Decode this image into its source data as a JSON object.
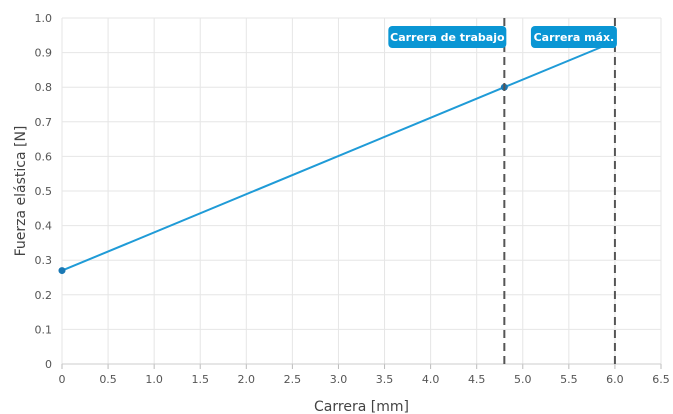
{
  "chart_data": {
    "type": "line",
    "title": "",
    "xlabel": "Carrera [mm]",
    "ylabel": "Fuerza elástica [N]",
    "xlim": [
      0,
      6.5
    ],
    "ylim": [
      0,
      1.0
    ],
    "x_ticks": [
      "0",
      "0.5",
      "1.0",
      "1.5",
      "2.0",
      "2.5",
      "3.0",
      "3.5",
      "4.0",
      "4.5",
      "5.0",
      "5.5",
      "6.0",
      "6.5"
    ],
    "y_ticks": [
      "0",
      "0.1",
      "0.2",
      "0.3",
      "0.4",
      "0.5",
      "0.6",
      "0.7",
      "0.8",
      "0.9",
      "1.0"
    ],
    "grid": true,
    "series": [
      {
        "x": [
          0,
          4.8,
          6.0
        ],
        "y": [
          0.27,
          0.8,
          0.932
        ],
        "color": "#1f9bd7"
      }
    ],
    "markers": [
      {
        "x": 0,
        "y": 0.27
      },
      {
        "x": 4.8,
        "y": 0.8
      }
    ],
    "vlines": [
      {
        "x": 4.8,
        "label": "Carrera de trabajo"
      },
      {
        "x": 6.0,
        "label": "Carrera máx."
      }
    ],
    "colors": {
      "line": "#1f9bd7",
      "marker": "#1a78b4",
      "label_bg": "#0a96d4",
      "vline": "#555555",
      "grid": "#e6e6e6"
    }
  }
}
